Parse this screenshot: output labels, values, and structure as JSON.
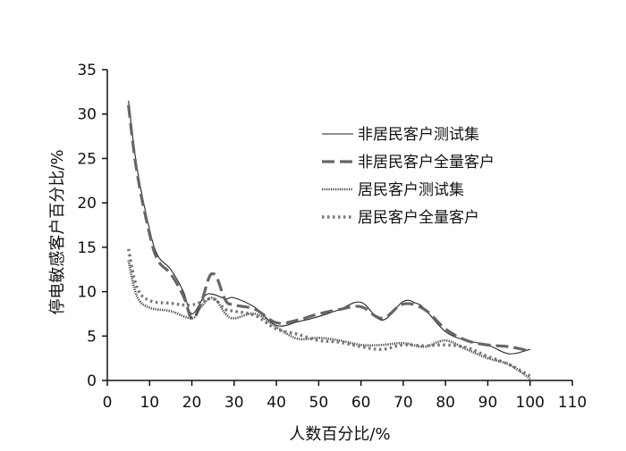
{
  "chart_data": {
    "type": "line",
    "xlabel": "人数百分比/%",
    "ylabel": "停电敏感客户百分比/%",
    "xlim": [
      0,
      110
    ],
    "ylim": [
      0,
      35
    ],
    "x_ticks": [
      0,
      10,
      20,
      30,
      40,
      50,
      60,
      70,
      80,
      90,
      100,
      110
    ],
    "y_ticks": [
      0,
      5,
      10,
      15,
      20,
      25,
      30,
      35
    ],
    "legend_position": "right",
    "series": [
      {
        "name": "非居民客户测试集",
        "style": "thin-solid",
        "x": [
          5,
          7,
          10,
          12,
          15,
          18,
          20,
          23,
          25,
          28,
          30,
          35,
          40,
          45,
          50,
          55,
          60,
          65,
          70,
          73,
          75,
          80,
          85,
          90,
          95,
          100
        ],
        "y": [
          31.5,
          24,
          17,
          14,
          12.5,
          10,
          7.5,
          9.5,
          9.7,
          9.2,
          9.3,
          8.2,
          6.2,
          6.6,
          7.2,
          8,
          8.8,
          6.8,
          8.9,
          8.7,
          8.1,
          5.5,
          4.5,
          4,
          3,
          3.5
        ]
      },
      {
        "name": "非居民客户全量客户",
        "style": "dashed",
        "x": [
          5,
          7,
          10,
          12,
          15,
          18,
          20,
          22,
          24,
          25,
          26,
          28,
          30,
          35,
          40,
          45,
          50,
          55,
          60,
          65,
          70,
          75,
          80,
          85,
          90,
          95,
          100
        ],
        "y": [
          31,
          23.5,
          16.5,
          13.5,
          12,
          9.5,
          7,
          8.5,
          11.5,
          12,
          11.5,
          9,
          8.5,
          8,
          6.5,
          6.8,
          7.5,
          8,
          8.3,
          7,
          8.6,
          8,
          5.8,
          4.5,
          4,
          3.8,
          3.3
        ]
      },
      {
        "name": "居民客户测试集",
        "style": "dense-dotted",
        "x": [
          5,
          7,
          10,
          15,
          20,
          22,
          25,
          28,
          30,
          35,
          40,
          45,
          50,
          55,
          60,
          65,
          70,
          75,
          80,
          85,
          90,
          95,
          100
        ],
        "y": [
          13.5,
          9.5,
          8.2,
          7.8,
          7,
          8.2,
          9.3,
          7.5,
          7,
          7.5,
          6,
          4.7,
          4.8,
          4.5,
          4,
          4,
          4.2,
          3.8,
          4.5,
          3.5,
          2.5,
          1.8,
          0.2
        ]
      },
      {
        "name": "居民客户全量客户",
        "style": "dotted",
        "x": [
          5,
          7,
          10,
          15,
          18,
          20,
          22,
          25,
          28,
          30,
          35,
          40,
          45,
          50,
          55,
          60,
          65,
          70,
          75,
          80,
          85,
          90,
          95,
          100
        ],
        "y": [
          14.8,
          10.5,
          9,
          8.7,
          8.5,
          8.5,
          8.8,
          9.2,
          8,
          7.8,
          7.3,
          5.8,
          5.2,
          4.5,
          4.3,
          3.8,
          3.5,
          4,
          3.9,
          4,
          3.7,
          2.7,
          1.8,
          0.5
        ]
      }
    ]
  }
}
